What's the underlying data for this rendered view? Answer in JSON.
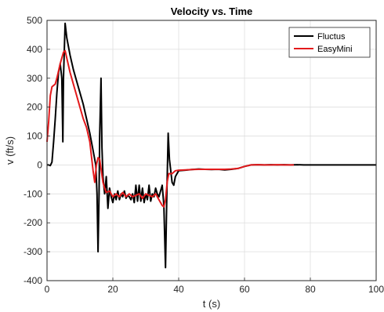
{
  "chart_data": {
    "type": "line",
    "title": "Velocity vs. Time",
    "xlabel": "t (s)",
    "ylabel": "v (ft/s)",
    "xlim": [
      0,
      100
    ],
    "ylim": [
      -400,
      500
    ],
    "xticks": [
      0,
      20,
      40,
      60,
      80,
      100
    ],
    "yticks": [
      -400,
      -300,
      -200,
      -100,
      0,
      100,
      200,
      300,
      400,
      500
    ],
    "grid": true,
    "legend_position": "top-right",
    "series": [
      {
        "name": "Fluctus",
        "color": "#000000",
        "points": [
          [
            0,
            0
          ],
          [
            0.5,
            0
          ],
          [
            1,
            -2
          ],
          [
            1.5,
            10
          ],
          [
            2,
            80
          ],
          [
            2.5,
            160
          ],
          [
            3,
            250
          ],
          [
            3.5,
            320
          ],
          [
            4,
            350
          ],
          [
            4.5,
            300
          ],
          [
            4.8,
            80
          ],
          [
            5,
            300
          ],
          [
            5.5,
            490
          ],
          [
            6,
            440
          ],
          [
            7,
            380
          ],
          [
            8,
            330
          ],
          [
            9,
            290
          ],
          [
            10,
            250
          ],
          [
            11,
            210
          ],
          [
            12,
            160
          ],
          [
            13,
            110
          ],
          [
            14,
            50
          ],
          [
            14.8,
            0
          ],
          [
            15.2,
            -100
          ],
          [
            15.5,
            -300
          ],
          [
            15.8,
            -100
          ],
          [
            16,
            100
          ],
          [
            16.4,
            300
          ],
          [
            16.7,
            60
          ],
          [
            17,
            -40
          ],
          [
            17.5,
            -100
          ],
          [
            18,
            -40
          ],
          [
            18.5,
            -150
          ],
          [
            19,
            -80
          ],
          [
            19.5,
            -110
          ],
          [
            20,
            -130
          ],
          [
            20.5,
            -100
          ],
          [
            21,
            -120
          ],
          [
            21.5,
            -90
          ],
          [
            22,
            -120
          ],
          [
            22.5,
            -100
          ],
          [
            23,
            -110
          ],
          [
            23.5,
            -90
          ],
          [
            24,
            -115
          ],
          [
            24.5,
            -105
          ],
          [
            25,
            -110
          ],
          [
            25.5,
            -120
          ],
          [
            26,
            -100
          ],
          [
            26.5,
            -130
          ],
          [
            27,
            -70
          ],
          [
            27.5,
            -125
          ],
          [
            28,
            -70
          ],
          [
            28.5,
            -125
          ],
          [
            29,
            -80
          ],
          [
            29.5,
            -130
          ],
          [
            30,
            -100
          ],
          [
            30.5,
            -120
          ],
          [
            31,
            -70
          ],
          [
            31.5,
            -125
          ],
          [
            32,
            -100
          ],
          [
            32.5,
            -110
          ],
          [
            33,
            -80
          ],
          [
            33.5,
            -100
          ],
          [
            34,
            -110
          ],
          [
            34.5,
            -90
          ],
          [
            35,
            -70
          ],
          [
            35.5,
            -140
          ],
          [
            36,
            -355
          ],
          [
            36.4,
            -100
          ],
          [
            36.8,
            110
          ],
          [
            37.2,
            20
          ],
          [
            38,
            -60
          ],
          [
            38.5,
            -70
          ],
          [
            39,
            -40
          ],
          [
            39.5,
            -30
          ],
          [
            40,
            -20
          ],
          [
            42,
            -18
          ],
          [
            44,
            -16
          ],
          [
            46,
            -14
          ],
          [
            48,
            -15
          ],
          [
            50,
            -16
          ],
          [
            52,
            -15
          ],
          [
            54,
            -17
          ],
          [
            56,
            -15
          ],
          [
            58,
            -12
          ],
          [
            60,
            -5
          ],
          [
            62,
            0
          ],
          [
            64,
            1
          ],
          [
            66,
            0
          ],
          [
            68,
            1
          ],
          [
            70,
            0
          ],
          [
            72,
            1
          ],
          [
            74,
            0
          ],
          [
            76,
            1
          ],
          [
            78,
            0
          ],
          [
            80,
            0
          ],
          [
            84,
            0
          ],
          [
            88,
            0
          ],
          [
            92,
            0
          ],
          [
            96,
            0
          ],
          [
            100,
            0
          ]
        ]
      },
      {
        "name": "EasyMini",
        "color": "#e31a1c",
        "points": [
          [
            0,
            80
          ],
          [
            0.5,
            150
          ],
          [
            1,
            240
          ],
          [
            1.5,
            270
          ],
          [
            2,
            275
          ],
          [
            2.5,
            280
          ],
          [
            3,
            300
          ],
          [
            4,
            350
          ],
          [
            5,
            390
          ],
          [
            5.5,
            395
          ],
          [
            6,
            370
          ],
          [
            7,
            320
          ],
          [
            8,
            280
          ],
          [
            9,
            240
          ],
          [
            10,
            200
          ],
          [
            11,
            160
          ],
          [
            12,
            130
          ],
          [
            13,
            80
          ],
          [
            13.5,
            30
          ],
          [
            14,
            -20
          ],
          [
            14.5,
            -60
          ],
          [
            15,
            0
          ],
          [
            15.5,
            25
          ],
          [
            16,
            20
          ],
          [
            16.5,
            -20
          ],
          [
            17,
            -60
          ],
          [
            17.5,
            -80
          ],
          [
            18,
            -95
          ],
          [
            19,
            -90
          ],
          [
            20,
            -110
          ],
          [
            21,
            -100
          ],
          [
            22,
            -110
          ],
          [
            23,
            -95
          ],
          [
            24,
            -110
          ],
          [
            25,
            -100
          ],
          [
            26,
            -110
          ],
          [
            27,
            -105
          ],
          [
            28,
            -100
          ],
          [
            29,
            -115
          ],
          [
            30,
            -100
          ],
          [
            31,
            -105
          ],
          [
            32,
            -110
          ],
          [
            33,
            -100
          ],
          [
            34,
            -120
          ],
          [
            35,
            -140
          ],
          [
            35.5,
            -145
          ],
          [
            36,
            -120
          ],
          [
            36.5,
            -60
          ],
          [
            37,
            -30
          ],
          [
            38,
            -30
          ],
          [
            39,
            -20
          ],
          [
            40,
            -18
          ],
          [
            42,
            -17
          ],
          [
            44,
            -16
          ],
          [
            46,
            -15
          ],
          [
            48,
            -15
          ],
          [
            50,
            -15
          ],
          [
            52,
            -15
          ],
          [
            54,
            -15
          ],
          [
            56,
            -14
          ],
          [
            58,
            -12
          ],
          [
            60,
            -5
          ],
          [
            62,
            0
          ],
          [
            64,
            1
          ],
          [
            66,
            0
          ],
          [
            68,
            0
          ],
          [
            70,
            1
          ],
          [
            72,
            0
          ],
          [
            74,
            0
          ],
          [
            75,
            0
          ]
        ]
      }
    ]
  }
}
